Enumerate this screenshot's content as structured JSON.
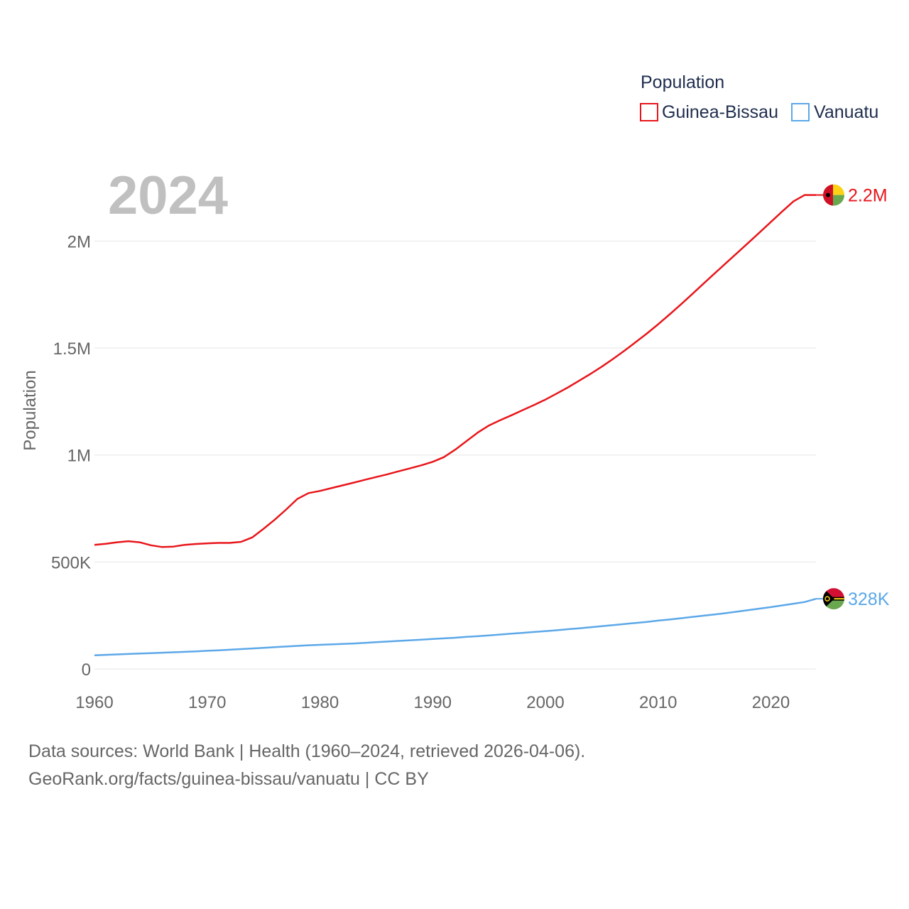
{
  "chart_data": {
    "type": "line",
    "year_label": "2024",
    "ylabel": "Population",
    "xlim": [
      1960,
      2024
    ],
    "ylim": [
      0,
      2300000
    ],
    "x_ticks": [
      1960,
      1970,
      1980,
      1990,
      2000,
      2010,
      2020
    ],
    "y_ticks": [
      {
        "value": 0,
        "label": "0"
      },
      {
        "value": 500000,
        "label": "500K"
      },
      {
        "value": 1000000,
        "label": "1M"
      },
      {
        "value": 1500000,
        "label": "1.5M"
      },
      {
        "value": 2000000,
        "label": "2M"
      }
    ],
    "legend": {
      "title": "Population",
      "position": "top-right"
    },
    "x": [
      1960,
      1961,
      1962,
      1963,
      1964,
      1965,
      1966,
      1967,
      1968,
      1969,
      1970,
      1971,
      1972,
      1973,
      1974,
      1975,
      1976,
      1977,
      1978,
      1979,
      1980,
      1981,
      1982,
      1983,
      1984,
      1985,
      1986,
      1987,
      1988,
      1989,
      1990,
      1991,
      1992,
      1993,
      1994,
      1995,
      1996,
      1997,
      1998,
      1999,
      2000,
      2001,
      2002,
      2003,
      2004,
      2005,
      2006,
      2007,
      2008,
      2009,
      2010,
      2011,
      2012,
      2013,
      2014,
      2015,
      2016,
      2017,
      2018,
      2019,
      2020,
      2021,
      2022,
      2023,
      2024
    ],
    "series": [
      {
        "name": "Guinea-Bissau",
        "color": "#e8161b",
        "end_label": "2.2M",
        "flag": "guinea-bissau-flag",
        "values": [
          580000,
          585000,
          592000,
          597000,
          592000,
          578000,
          570000,
          572000,
          580000,
          584000,
          587000,
          589000,
          589000,
          594000,
          615000,
          655000,
          698000,
          745000,
          795000,
          822000,
          832000,
          845000,
          858000,
          871000,
          884000,
          897000,
          910000,
          924000,
          938000,
          952000,
          968000,
          990000,
          1025000,
          1065000,
          1105000,
          1138000,
          1163000,
          1186000,
          1210000,
          1234000,
          1259000,
          1287000,
          1316000,
          1347000,
          1379000,
          1413000,
          1449000,
          1487000,
          1527000,
          1568000,
          1611000,
          1656000,
          1703000,
          1751000,
          1800000,
          1848000,
          1896000,
          1944000,
          1992000,
          2040000,
          2089000,
          2138000,
          2185000,
          2215000,
          2215000
        ]
      },
      {
        "name": "Vanuatu",
        "color": "#5ca8e8",
        "end_label": "328K",
        "flag": "vanuatu-flag",
        "values": [
          64000,
          66000,
          68000,
          70000,
          72000,
          74000,
          76000,
          78000,
          80000,
          82000,
          85000,
          87000,
          90000,
          93000,
          96000,
          99000,
          102000,
          105000,
          108000,
          111000,
          113000,
          115000,
          117000,
          119000,
          122000,
          125000,
          128000,
          131000,
          134000,
          137000,
          140000,
          143000,
          146000,
          150000,
          153000,
          157000,
          161000,
          165000,
          169000,
          173000,
          177000,
          181000,
          186000,
          190000,
          195000,
          200000,
          205000,
          210000,
          215000,
          220000,
          226000,
          231000,
          237000,
          243000,
          249000,
          255000,
          261000,
          268000,
          275000,
          282000,
          289000,
          297000,
          305000,
          313000,
          328000
        ]
      }
    ]
  },
  "footer": {
    "line1": "Data sources: World Bank | Health (1960–2024, retrieved 2026-04-06).",
    "line2": "GeoRank.org/facts/guinea-bissau/vanuatu | CC BY"
  }
}
